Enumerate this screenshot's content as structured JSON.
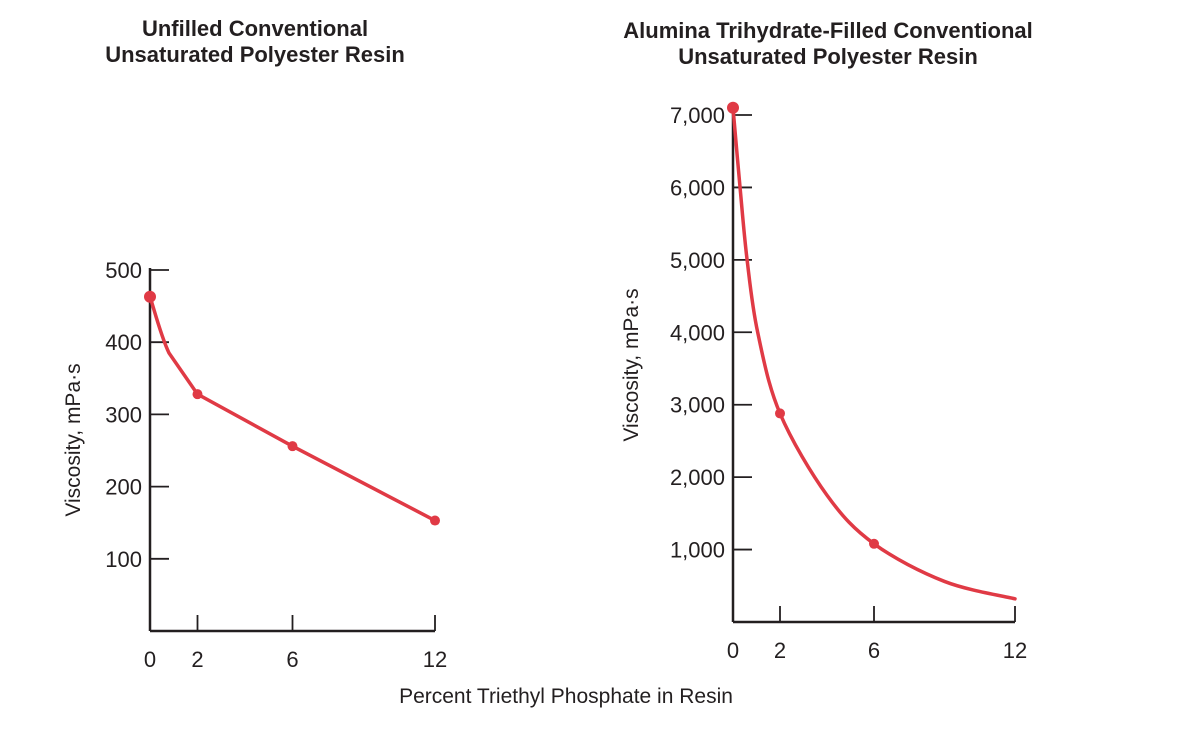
{
  "chart_data": [
    {
      "type": "line",
      "title": [
        "Unfilled Conventional",
        "Unsaturated Polyester Resin"
      ],
      "xlabel": "Percent Triethyl Phosphate in Resin",
      "ylabel": "Viscosity, mPa·s",
      "xlim": [
        0,
        12
      ],
      "ylim": [
        0,
        500
      ],
      "xticks": [
        {
          "v": 0,
          "label": "0"
        },
        {
          "v": 2,
          "label": "2"
        },
        {
          "v": 6,
          "label": "6"
        },
        {
          "v": 12,
          "label": "12"
        }
      ],
      "yticks": [
        {
          "v": 100,
          "label": "100"
        },
        {
          "v": 200,
          "label": "200"
        },
        {
          "v": 300,
          "label": "300"
        },
        {
          "v": 400,
          "label": "400"
        },
        {
          "v": 500,
          "label": "500"
        }
      ],
      "x": [
        0,
        2,
        6,
        12
      ],
      "y": [
        463,
        328,
        256,
        153
      ],
      "curve_guide": [
        [
          0,
          463
        ],
        [
          0.8,
          385
        ],
        [
          2,
          328
        ],
        [
          6,
          256
        ],
        [
          12,
          153
        ]
      ],
      "color": "#e03a45"
    },
    {
      "type": "line",
      "title": [
        "Alumina Trihydrate-Filled Conventional",
        "Unsaturated Polyester Resin"
      ],
      "xlabel": "Percent Triethyl Phosphate in Resin",
      "ylabel": "Viscosity, mPa·s",
      "xlim": [
        0,
        12
      ],
      "ylim": [
        0,
        7000
      ],
      "xticks": [
        {
          "v": 0,
          "label": "0"
        },
        {
          "v": 2,
          "label": "2"
        },
        {
          "v": 6,
          "label": "6"
        },
        {
          "v": 12,
          "label": "12"
        }
      ],
      "yticks": [
        {
          "v": 1000,
          "label": "1,000"
        },
        {
          "v": 2000,
          "label": "2,000"
        },
        {
          "v": 3000,
          "label": "3,000"
        },
        {
          "v": 4000,
          "label": "4,000"
        },
        {
          "v": 5000,
          "label": "5,000"
        },
        {
          "v": 6000,
          "label": "6,000"
        },
        {
          "v": 7000,
          "label": "7,000"
        }
      ],
      "x": [
        0,
        2,
        6
      ],
      "y": [
        7100,
        2880,
        1080
      ],
      "curve_guide": [
        [
          0,
          7100
        ],
        [
          0.3,
          6000
        ],
        [
          0.6,
          5000
        ],
        [
          1.05,
          4000
        ],
        [
          2,
          2880
        ],
        [
          4,
          1750
        ],
        [
          6,
          1080
        ],
        [
          9,
          560
        ],
        [
          12,
          320
        ]
      ],
      "color": "#e03a45"
    }
  ],
  "shared_xlabel": "Percent Triethyl Phosphate in Resin"
}
